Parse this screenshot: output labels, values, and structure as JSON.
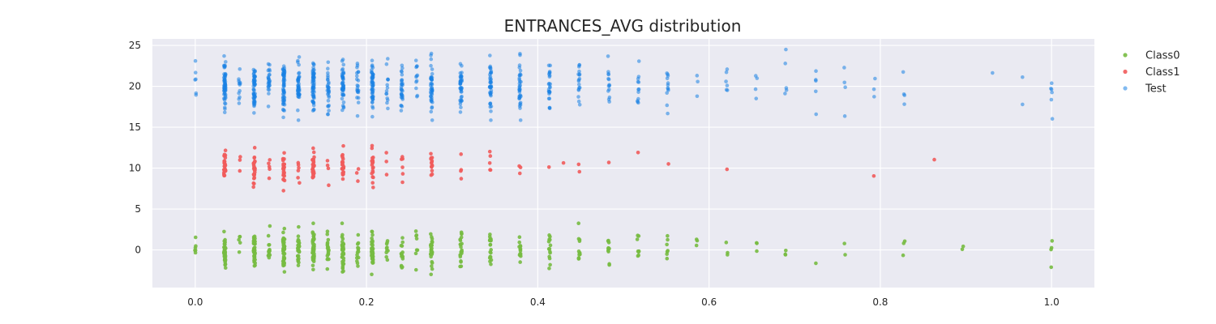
{
  "chart_data": {
    "type": "scatter",
    "title": "ENTRANCES_AVG distribution",
    "xlabel": "",
    "ylabel": "",
    "xlim": [
      -0.05,
      1.05
    ],
    "ylim": [
      -4.6,
      25.8
    ],
    "xticks": [
      0.0,
      0.2,
      0.4,
      0.6,
      0.8,
      1.0
    ],
    "xtick_labels": [
      "0.0",
      "0.2",
      "0.4",
      "0.6",
      "0.8",
      "1.0"
    ],
    "yticks": [
      0,
      5,
      10,
      15,
      20,
      25
    ],
    "ytick_labels": [
      "0",
      "5",
      "10",
      "15",
      "20",
      "25"
    ],
    "grid": true,
    "legend_position": "outside-right",
    "colors": {
      "background": "#eaeaf2",
      "grid": "#ffffff",
      "Class0": "#77bb41",
      "Class1": "#f15b5b",
      "Test": "#1a82e3"
    },
    "jitter_note": "y values are random jitter around class offsets (Class0 ≈ 0, Class1 ≈ 10, Test ≈ 20)",
    "series": [
      {
        "name": "Class0",
        "color": "#77bb41",
        "center": 0,
        "spread": 1.3,
        "columns": [
          [
            0.0,
            6
          ],
          [
            0.0345,
            45
          ],
          [
            0.0517,
            5
          ],
          [
            0.069,
            40
          ],
          [
            0.0862,
            14
          ],
          [
            0.1034,
            45
          ],
          [
            0.1207,
            30
          ],
          [
            0.1379,
            55
          ],
          [
            0.1552,
            20
          ],
          [
            0.1724,
            38
          ],
          [
            0.1897,
            14
          ],
          [
            0.2069,
            40
          ],
          [
            0.2241,
            10
          ],
          [
            0.2414,
            15
          ],
          [
            0.2586,
            8
          ],
          [
            0.2759,
            30
          ],
          [
            0.3103,
            22
          ],
          [
            0.3448,
            20
          ],
          [
            0.3793,
            14
          ],
          [
            0.4138,
            14
          ],
          [
            0.4483,
            12
          ],
          [
            0.4828,
            10
          ],
          [
            0.5172,
            8
          ],
          [
            0.5517,
            7
          ],
          [
            0.5862,
            3
          ],
          [
            0.6207,
            3
          ],
          [
            0.6552,
            3
          ],
          [
            0.6897,
            3
          ],
          [
            0.7241,
            1
          ],
          [
            0.7586,
            2
          ],
          [
            0.8276,
            3
          ],
          [
            0.8966,
            2
          ],
          [
            1.0,
            4
          ]
        ]
      },
      {
        "name": "Class1",
        "color": "#f15b5b",
        "center": 10,
        "spread": 1.2,
        "columns": [
          [
            0.0345,
            30
          ],
          [
            0.0517,
            3
          ],
          [
            0.069,
            25
          ],
          [
            0.0862,
            5
          ],
          [
            0.1034,
            25
          ],
          [
            0.1207,
            6
          ],
          [
            0.1379,
            28
          ],
          [
            0.1552,
            4
          ],
          [
            0.1724,
            22
          ],
          [
            0.1897,
            3
          ],
          [
            0.2069,
            20
          ],
          [
            0.2241,
            3
          ],
          [
            0.2414,
            6
          ],
          [
            0.2759,
            14
          ],
          [
            0.3103,
            4
          ],
          [
            0.3448,
            5
          ],
          [
            0.3793,
            3
          ],
          [
            0.4138,
            1
          ],
          [
            0.431,
            1
          ],
          [
            0.4483,
            2
          ],
          [
            0.4828,
            1
          ],
          [
            0.5172,
            1
          ],
          [
            0.5517,
            1
          ],
          [
            0.6207,
            1
          ],
          [
            0.7931,
            1
          ],
          [
            0.8621,
            1
          ]
        ]
      },
      {
        "name": "Test",
        "color": "#1a82e3",
        "center": 20,
        "spread": 1.8,
        "columns": [
          [
            0.0,
            6
          ],
          [
            0.0345,
            60
          ],
          [
            0.0517,
            12
          ],
          [
            0.069,
            55
          ],
          [
            0.0862,
            25
          ],
          [
            0.1034,
            60
          ],
          [
            0.1207,
            45
          ],
          [
            0.1379,
            60
          ],
          [
            0.1552,
            30
          ],
          [
            0.1724,
            50
          ],
          [
            0.1897,
            22
          ],
          [
            0.2069,
            50
          ],
          [
            0.2241,
            14
          ],
          [
            0.2414,
            30
          ],
          [
            0.2586,
            12
          ],
          [
            0.2759,
            45
          ],
          [
            0.3103,
            40
          ],
          [
            0.3448,
            40
          ],
          [
            0.3793,
            35
          ],
          [
            0.4138,
            25
          ],
          [
            0.4483,
            18
          ],
          [
            0.4828,
            14
          ],
          [
            0.5172,
            12
          ],
          [
            0.5517,
            12
          ],
          [
            0.5862,
            3
          ],
          [
            0.6207,
            6
          ],
          [
            0.6552,
            4
          ],
          [
            0.6897,
            5
          ],
          [
            0.7241,
            5
          ],
          [
            0.7586,
            4
          ],
          [
            0.7931,
            3
          ],
          [
            0.8276,
            4
          ],
          [
            0.931,
            1
          ],
          [
            0.9655,
            2
          ],
          [
            1.0,
            6
          ]
        ]
      }
    ]
  }
}
